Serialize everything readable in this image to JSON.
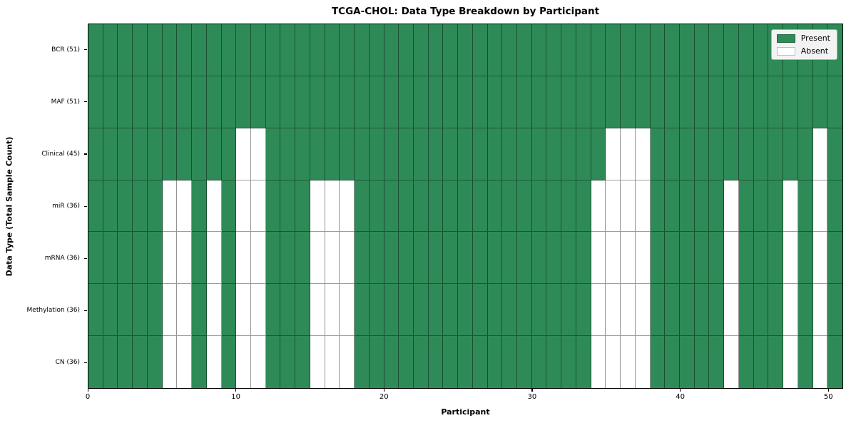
{
  "title": "TCGA-CHOL: Data Type Breakdown by Participant",
  "xlabel": "Participant",
  "ylabel": "Data Type (Total Sample Count)",
  "colors": {
    "present": "#2e8b57",
    "absent": "#ffffff",
    "grid_line": "rgba(0,0,0,0.4)",
    "legend_bg": "#f3f3f3"
  },
  "legend": {
    "items": [
      {
        "label": "Present",
        "color": "#2e8b57"
      },
      {
        "label": "Absent",
        "color": "#ffffff"
      }
    ],
    "position": "upper right"
  },
  "chart_data": {
    "type": "heatmap",
    "title": "TCGA-CHOL: Data Type Breakdown by Participant",
    "xlabel": "Participant",
    "ylabel": "Data Type (Total Sample Count)",
    "x_range": [
      0,
      51
    ],
    "n_participants": 51,
    "x_ticks": [
      0,
      10,
      20,
      30,
      40,
      50
    ],
    "grid": true,
    "legend_position": "upper right",
    "value_encoding": {
      "present": 1,
      "absent": 0
    },
    "rows": [
      {
        "label": "BCR (51)",
        "data_type": "BCR",
        "present_count": 51,
        "absent_participants": []
      },
      {
        "label": "MAF (51)",
        "data_type": "MAF",
        "present_count": 51,
        "absent_participants": []
      },
      {
        "label": "Clinical (45)",
        "data_type": "Clinical",
        "present_count": 45,
        "absent_participants": [
          10,
          11,
          35,
          36,
          37,
          49
        ]
      },
      {
        "label": "miR (36)",
        "data_type": "miR",
        "present_count": 36,
        "absent_participants": [
          5,
          6,
          8,
          10,
          11,
          15,
          16,
          17,
          34,
          35,
          36,
          37,
          43,
          47,
          49
        ]
      },
      {
        "label": "mRNA (36)",
        "data_type": "mRNA",
        "present_count": 36,
        "absent_participants": [
          5,
          6,
          8,
          10,
          11,
          15,
          16,
          17,
          34,
          35,
          36,
          37,
          43,
          47,
          49
        ]
      },
      {
        "label": "Methylation (36)",
        "data_type": "Methylation",
        "present_count": 36,
        "absent_participants": [
          5,
          6,
          8,
          10,
          11,
          15,
          16,
          17,
          34,
          35,
          36,
          37,
          43,
          47,
          49
        ]
      },
      {
        "label": "CN (36)",
        "data_type": "CN",
        "present_count": 36,
        "absent_participants": [
          5,
          6,
          8,
          10,
          11,
          15,
          16,
          17,
          34,
          35,
          36,
          37,
          43,
          47,
          49
        ]
      }
    ]
  }
}
